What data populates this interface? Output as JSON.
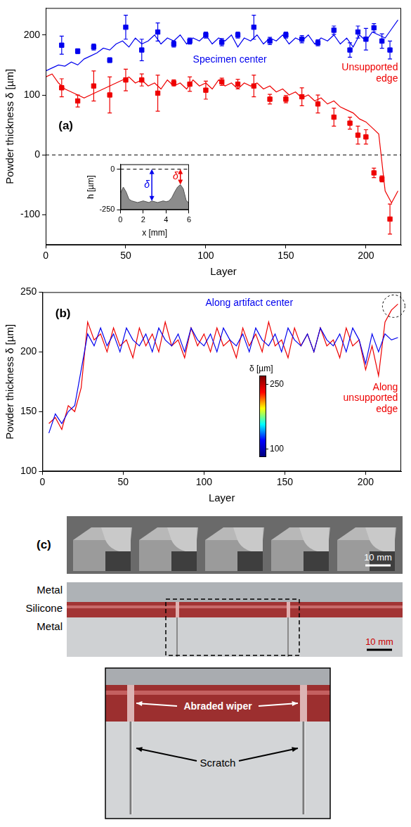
{
  "chart_data": [
    {
      "type": "line",
      "panel_label": "(a)",
      "x_label": "Layer",
      "y_label": "Powder thickness δ [µm]",
      "xlim": [
        0,
        222
      ],
      "xticks": [
        0,
        50,
        100,
        150,
        200
      ],
      "ylim": [
        -150,
        245
      ],
      "yticks": [
        -100,
        0,
        100,
        200
      ],
      "grid": false,
      "reference_line": 0,
      "series": [
        {
          "name": "Specimen center",
          "color": "#0000ee",
          "x": [
            0,
            4,
            8,
            12,
            16,
            20,
            24,
            28,
            32,
            36,
            40,
            44,
            48,
            52,
            56,
            60,
            64,
            68,
            72,
            76,
            80,
            84,
            88,
            92,
            96,
            100,
            104,
            108,
            112,
            116,
            120,
            124,
            128,
            132,
            136,
            140,
            144,
            148,
            152,
            156,
            160,
            164,
            168,
            172,
            176,
            180,
            184,
            188,
            192,
            196,
            200,
            204,
            208,
            212,
            216,
            220
          ],
          "values": [
            140,
            145,
            150,
            148,
            155,
            150,
            160,
            165,
            170,
            178,
            175,
            185,
            190,
            180,
            195,
            185,
            190,
            200,
            185,
            195,
            190,
            200,
            185,
            195,
            190,
            200,
            185,
            195,
            190,
            200,
            180,
            195,
            190,
            200,
            185,
            195,
            190,
            200,
            185,
            195,
            190,
            200,
            185,
            195,
            190,
            200,
            185,
            195,
            180,
            200,
            190,
            205,
            200,
            195,
            210,
            225
          ],
          "measured": {
            "marker": "square",
            "x": [
              10,
              20,
              30,
              40,
              50,
              60,
              70,
              80,
              90,
              100,
              110,
              120,
              130,
              140,
              150,
              160,
              170,
              180,
              190,
              195,
              200,
              205,
              210,
              215
            ],
            "values": [
              183,
              173,
              180,
              158,
              213,
              175,
              205,
              185,
              190,
              200,
              188,
              200,
              213,
              190,
              200,
              193,
              187,
              208,
              175,
              205,
              193,
              212,
              190,
              175
            ],
            "errors": [
              15,
              4,
              5,
              4,
              20,
              18,
              15,
              5,
              5,
              5,
              6,
              5,
              20,
              6,
              5,
              6,
              5,
              7,
              12,
              10,
              18,
              7,
              12,
              15
            ]
          }
        },
        {
          "name": "Unsupported edge",
          "color": "#ee0000",
          "x": [
            0,
            4,
            8,
            12,
            16,
            20,
            24,
            28,
            32,
            36,
            40,
            44,
            48,
            52,
            56,
            60,
            64,
            68,
            72,
            76,
            80,
            84,
            88,
            92,
            96,
            100,
            104,
            108,
            112,
            116,
            120,
            124,
            128,
            132,
            136,
            140,
            144,
            148,
            152,
            156,
            160,
            164,
            168,
            172,
            176,
            180,
            184,
            188,
            192,
            196,
            200,
            204,
            208,
            212,
            216,
            220
          ],
          "values": [
            130,
            135,
            120,
            110,
            105,
            100,
            95,
            100,
            105,
            110,
            115,
            120,
            125,
            130,
            120,
            125,
            115,
            120,
            110,
            125,
            115,
            120,
            110,
            125,
            115,
            120,
            110,
            125,
            115,
            120,
            110,
            120,
            115,
            120,
            110,
            115,
            105,
            110,
            100,
            105,
            95,
            100,
            90,
            95,
            85,
            90,
            80,
            75,
            70,
            60,
            55,
            45,
            35,
            -60,
            -80,
            -60
          ],
          "measured": {
            "marker": "square",
            "x": [
              10,
              20,
              30,
              40,
              50,
              60,
              70,
              80,
              90,
              100,
              110,
              120,
              130,
              140,
              150,
              160,
              170,
              180,
              190,
              195,
              200,
              205,
              210,
              215
            ],
            "values": [
              112,
              90,
              115,
              100,
              125,
              125,
              103,
              120,
              118,
              108,
              122,
              118,
              115,
              93,
              93,
              97,
              85,
              63,
              53,
              33,
              30,
              -30,
              -40,
              -107
            ],
            "errors": [
              15,
              10,
              25,
              30,
              18,
              10,
              30,
              5,
              12,
              15,
              6,
              8,
              18,
              8,
              6,
              15,
              15,
              15,
              10,
              15,
              12,
              8,
              5,
              25
            ]
          }
        }
      ]
    },
    {
      "type": "area",
      "x_label": "x [mm]",
      "y_label": "h [µm]",
      "xlim": [
        0,
        6
      ],
      "xticks": [
        0,
        2,
        4,
        6
      ],
      "ylim": [
        -250,
        30
      ],
      "yticks": [
        -250,
        0
      ],
      "grid": false,
      "reference_line": 0,
      "color": "#8c8c8c",
      "x": [
        0,
        0.25,
        0.5,
        0.75,
        1,
        1.25,
        1.5,
        1.75,
        2,
        2.25,
        2.5,
        2.75,
        3,
        3.25,
        3.5,
        3.75,
        4,
        4.25,
        4.5,
        4.75,
        5,
        5.25,
        5.5,
        5.75,
        6
      ],
      "values": [
        -150,
        -110,
        -140,
        -185,
        -195,
        -200,
        -205,
        -200,
        -195,
        -200,
        -205,
        -195,
        -200,
        -205,
        -200,
        -195,
        -200,
        -195,
        -175,
        -140,
        -110,
        -95,
        -120,
        -190,
        -210
      ],
      "markers": [
        {
          "text": "δ",
          "color": "#0000ee",
          "x": 2.75
        },
        {
          "text": "δ",
          "color": "#ee0000",
          "x": 5.25
        }
      ]
    },
    {
      "type": "line",
      "panel_label": "(b)",
      "x_label": "Layer",
      "y_label": "Powder thickness δ [µm]",
      "xlim": [
        0,
        222
      ],
      "xticks": [
        0,
        50,
        100,
        150,
        200
      ],
      "ylim": [
        100,
        250
      ],
      "yticks": [
        100,
        150,
        200,
        250
      ],
      "grid": false,
      "series": [
        {
          "name": "Along artifact center",
          "color": "#0000ee",
          "x": [
            4,
            8,
            12,
            16,
            20,
            24,
            28,
            32,
            36,
            40,
            44,
            48,
            52,
            56,
            60,
            64,
            68,
            72,
            76,
            80,
            84,
            88,
            92,
            96,
            100,
            104,
            108,
            112,
            116,
            120,
            124,
            128,
            132,
            136,
            140,
            144,
            148,
            152,
            156,
            160,
            164,
            168,
            172,
            176,
            180,
            184,
            188,
            192,
            196,
            200,
            204,
            208,
            212,
            216,
            220
          ],
          "values": [
            132,
            148,
            140,
            150,
            155,
            185,
            215,
            205,
            220,
            205,
            215,
            200,
            220,
            210,
            205,
            215,
            200,
            220,
            210,
            205,
            215,
            200,
            220,
            210,
            205,
            215,
            200,
            220,
            210,
            205,
            215,
            200,
            220,
            210,
            205,
            215,
            200,
            220,
            210,
            205,
            215,
            200,
            220,
            210,
            205,
            215,
            200,
            220,
            210,
            190,
            215,
            200,
            215,
            210,
            212
          ]
        },
        {
          "name": "Along unsupported edge",
          "color": "#ee0000",
          "x": [
            4,
            8,
            12,
            16,
            20,
            24,
            28,
            32,
            36,
            40,
            44,
            48,
            52,
            56,
            60,
            64,
            68,
            72,
            76,
            80,
            84,
            88,
            92,
            96,
            100,
            104,
            108,
            112,
            116,
            120,
            124,
            128,
            132,
            136,
            140,
            144,
            148,
            152,
            156,
            160,
            164,
            168,
            172,
            176,
            180,
            184,
            188,
            192,
            196,
            200,
            204,
            208,
            212,
            216,
            220
          ],
          "values": [
            140,
            145,
            135,
            155,
            150,
            170,
            225,
            210,
            215,
            200,
            220,
            205,
            210,
            195,
            220,
            205,
            215,
            200,
            225,
            205,
            210,
            195,
            220,
            205,
            215,
            200,
            220,
            205,
            210,
            195,
            220,
            205,
            215,
            200,
            225,
            205,
            210,
            195,
            220,
            205,
            215,
            200,
            220,
            205,
            210,
            195,
            220,
            205,
            210,
            185,
            205,
            180,
            225,
            235,
            240
          ]
        }
      ],
      "colorbar": {
        "label": "δ [µm]",
        "range": [
          80,
          270
        ],
        "ticks": [
          100,
          250
        ],
        "colors": [
          "#00007f",
          "#0000ff",
          "#00ffff",
          "#ffff00",
          "#ff0000",
          "#7f0000"
        ]
      }
    }
  ],
  "panel_c": {
    "label": "(c)",
    "scale_bars": [
      "10 mm",
      "10 mm"
    ],
    "materials": [
      "Metal",
      "Silicone",
      "Metal"
    ],
    "annotations": [
      "Abraded wiper",
      "Scratch"
    ]
  }
}
